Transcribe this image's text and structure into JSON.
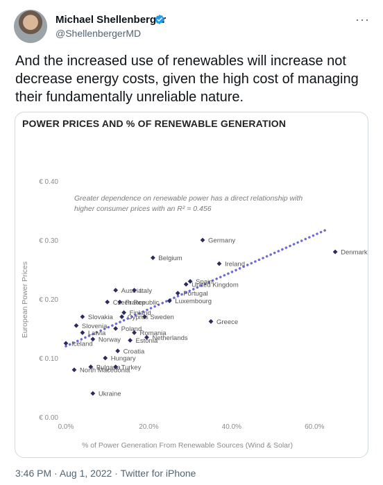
{
  "author": {
    "name": "Michael Shellenberger",
    "handle": "@ShellenbergerMD"
  },
  "tweet_text": "And the increased use of renewables will increase not decrease energy costs, given the high cost of managing their fundamentally unreliable nature.",
  "more_label": "···",
  "meta": {
    "time": "3:46 PM",
    "separator": " · ",
    "date": "Aug 1, 2022",
    "source": "Twitter for iPhone"
  },
  "colors": {
    "accent": "#1d9bf0",
    "point": "#2b2b5e",
    "trendline": "#6a6ad8",
    "axis_text": "#8a8a8a"
  },
  "chart_data": {
    "type": "scatter",
    "title": "POWER PRICES AND % OF RENEWABLE GENERATION",
    "xlabel": "% of Power Generation From Renewable Sources (Wind & Solar)",
    "ylabel": "European Power Prices",
    "annotation": [
      "Greater dependence on renewable power has a direct relationship with",
      "higher consumer prices with an R² = 0.456"
    ],
    "xlim": [
      0,
      0.7
    ],
    "ylim": [
      0,
      0.4
    ],
    "x_ticks": [
      0,
      0.2,
      0.4,
      0.6
    ],
    "x_tick_labels": [
      "0.0%",
      "20.0%",
      "40.0%",
      "60.0%"
    ],
    "y_ticks": [
      0,
      0.1,
      0.2,
      0.3,
      0.4
    ],
    "y_tick_labels": [
      "€ 0.00",
      "€ 0.10",
      "€ 0.20",
      "€ 0.30",
      "€ 0.40"
    ],
    "grid": false,
    "trendline": {
      "x": [
        0,
        0.63
      ],
      "y": [
        0.12,
        0.318
      ]
    },
    "points": [
      {
        "label": "Germany",
        "x": 0.33,
        "y": 0.3
      },
      {
        "label": "Denmark",
        "x": 0.65,
        "y": 0.28
      },
      {
        "label": "Belgium",
        "x": 0.21,
        "y": 0.27
      },
      {
        "label": "Ireland",
        "x": 0.37,
        "y": 0.26
      },
      {
        "label": "Spain",
        "x": 0.3,
        "y": 0.23
      },
      {
        "label": "United Kingdom",
        "x": 0.29,
        "y": 0.225
      },
      {
        "label": "Austria",
        "x": 0.12,
        "y": 0.215
      },
      {
        "label": "Italy",
        "x": 0.165,
        "y": 0.215
      },
      {
        "label": "Portugal",
        "x": 0.27,
        "y": 0.21
      },
      {
        "label": "Luxembourg",
        "x": 0.25,
        "y": 0.197
      },
      {
        "label": "Czech Republic",
        "x": 0.1,
        "y": 0.195
      },
      {
        "label": "France",
        "x": 0.13,
        "y": 0.195
      },
      {
        "label": "Finland",
        "x": 0.14,
        "y": 0.177
      },
      {
        "label": "Slovakia",
        "x": 0.04,
        "y": 0.17
      },
      {
        "label": "Cyprus",
        "x": 0.135,
        "y": 0.17
      },
      {
        "label": "Sweden",
        "x": 0.19,
        "y": 0.17
      },
      {
        "label": "Greece",
        "x": 0.35,
        "y": 0.162
      },
      {
        "label": "Slovenia",
        "x": 0.025,
        "y": 0.155
      },
      {
        "label": "Poland",
        "x": 0.12,
        "y": 0.15
      },
      {
        "label": "Latvia",
        "x": 0.04,
        "y": 0.143
      },
      {
        "label": "Romania",
        "x": 0.165,
        "y": 0.143
      },
      {
        "label": "Netherlands",
        "x": 0.195,
        "y": 0.135
      },
      {
        "label": "Norway",
        "x": 0.065,
        "y": 0.132
      },
      {
        "label": "Estonia",
        "x": 0.155,
        "y": 0.13
      },
      {
        "label": "Iceland",
        "x": 0.0,
        "y": 0.125
      },
      {
        "label": "Croatia",
        "x": 0.125,
        "y": 0.112
      },
      {
        "label": "Hungary",
        "x": 0.095,
        "y": 0.1
      },
      {
        "label": "Bulgaria",
        "x": 0.06,
        "y": 0.085
      },
      {
        "label": "Turkey",
        "x": 0.12,
        "y": 0.085
      },
      {
        "label": "North Macedonia",
        "x": 0.02,
        "y": 0.08
      },
      {
        "label": "Ukraine",
        "x": 0.065,
        "y": 0.04
      }
    ]
  }
}
